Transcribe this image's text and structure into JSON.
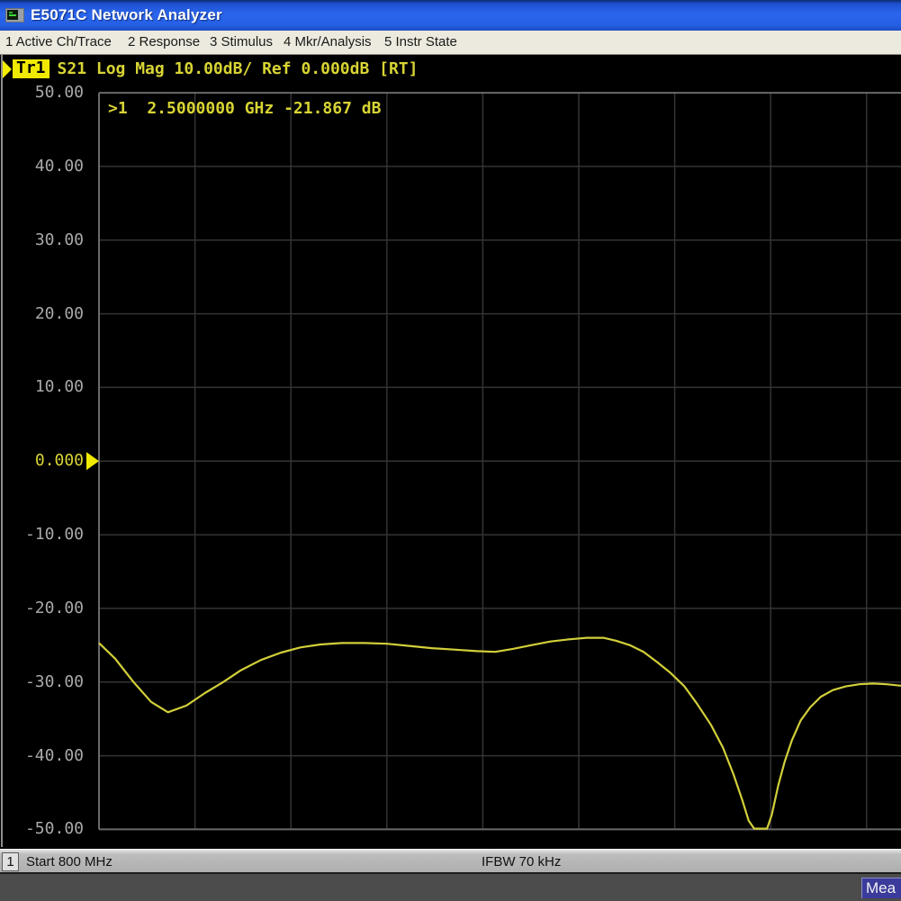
{
  "window": {
    "title": "E5071C Network Analyzer"
  },
  "menu": {
    "items": [
      "1 Active Ch/Trace",
      "2 Response",
      "3 Stimulus",
      "4 Mkr/Analysis",
      "5 Instr State"
    ]
  },
  "trace_status": {
    "trace_label": "Tr1",
    "settings": "S21 Log Mag 10.00dB/ Ref 0.000dB [RT]"
  },
  "marker_readout": ">1  2.5000000 GHz -21.867 dB",
  "status_bar": {
    "channel": "1",
    "start": "Start 800 MHz",
    "ifbw": "IFBW 70 kHz"
  },
  "taskbar": {
    "button": "Mea"
  },
  "colors": {
    "trace": "#d2cf3a",
    "highlight_yellow": "#f0ea00",
    "ref_text": "#d8d434",
    "axis_label": "#a9a9a9",
    "grid_inner": "#343434",
    "grid_border": "#6a6a6a",
    "titlebar_blue": "#2a65ec"
  },
  "chart_data": {
    "type": "line",
    "title": "Tr1 S21 Log Mag",
    "parameter": "S21",
    "format": "Log Mag",
    "scale_per_div_db": 10.0,
    "ref_level_db": 0.0,
    "ylim": [
      -50,
      50
    ],
    "ylabel": "dB",
    "y_ticks": [
      "50.00",
      "40.00",
      "30.00",
      "20.00",
      "10.00",
      "0.000",
      "-10.00",
      "-20.00",
      "-30.00",
      "-40.00",
      "-50.00"
    ],
    "ref_tick": "0.000",
    "x_start_label": "Start 800 MHz",
    "ifbw_label": "IFBW 70 kHz",
    "grid": true,
    "legend_position": "none",
    "marker": {
      "number": 1,
      "frequency": "2.5000000 GHz",
      "value_db": -21.867
    },
    "series": [
      {
        "name": "Tr1 S21",
        "color": "#d2cf3a",
        "x_unit": "fraction_of_visible_span",
        "points": [
          [
            0.0,
            -24.7
          ],
          [
            0.02,
            -26.8
          ],
          [
            0.043,
            -30.0
          ],
          [
            0.065,
            -32.7
          ],
          [
            0.086,
            -34.1
          ],
          [
            0.109,
            -33.2
          ],
          [
            0.132,
            -31.5
          ],
          [
            0.155,
            -30.0
          ],
          [
            0.177,
            -28.4
          ],
          [
            0.202,
            -27.0
          ],
          [
            0.227,
            -26.0
          ],
          [
            0.251,
            -25.3
          ],
          [
            0.276,
            -24.9
          ],
          [
            0.303,
            -24.7
          ],
          [
            0.331,
            -24.7
          ],
          [
            0.359,
            -24.8
          ],
          [
            0.387,
            -25.1
          ],
          [
            0.415,
            -25.4
          ],
          [
            0.443,
            -25.6
          ],
          [
            0.471,
            -25.8
          ],
          [
            0.494,
            -25.9
          ],
          [
            0.516,
            -25.5
          ],
          [
            0.539,
            -25.0
          ],
          [
            0.563,
            -24.5
          ],
          [
            0.586,
            -24.2
          ],
          [
            0.608,
            -24.0
          ],
          [
            0.629,
            -24.0
          ],
          [
            0.645,
            -24.4
          ],
          [
            0.662,
            -25.0
          ],
          [
            0.679,
            -25.9
          ],
          [
            0.696,
            -27.3
          ],
          [
            0.713,
            -28.8
          ],
          [
            0.73,
            -30.6
          ],
          [
            0.746,
            -33.0
          ],
          [
            0.763,
            -35.8
          ],
          [
            0.778,
            -38.9
          ],
          [
            0.791,
            -42.5
          ],
          [
            0.802,
            -46.0
          ],
          [
            0.81,
            -48.8
          ],
          [
            0.817,
            -49.9
          ],
          [
            0.833,
            -49.9
          ],
          [
            0.839,
            -48.0
          ],
          [
            0.847,
            -44.0
          ],
          [
            0.855,
            -40.8
          ],
          [
            0.864,
            -37.9
          ],
          [
            0.875,
            -35.2
          ],
          [
            0.887,
            -33.4
          ],
          [
            0.9,
            -32.0
          ],
          [
            0.915,
            -31.1
          ],
          [
            0.931,
            -30.6
          ],
          [
            0.948,
            -30.3
          ],
          [
            0.965,
            -30.2
          ],
          [
            0.982,
            -30.3
          ],
          [
            1.0,
            -30.5
          ]
        ]
      }
    ]
  }
}
